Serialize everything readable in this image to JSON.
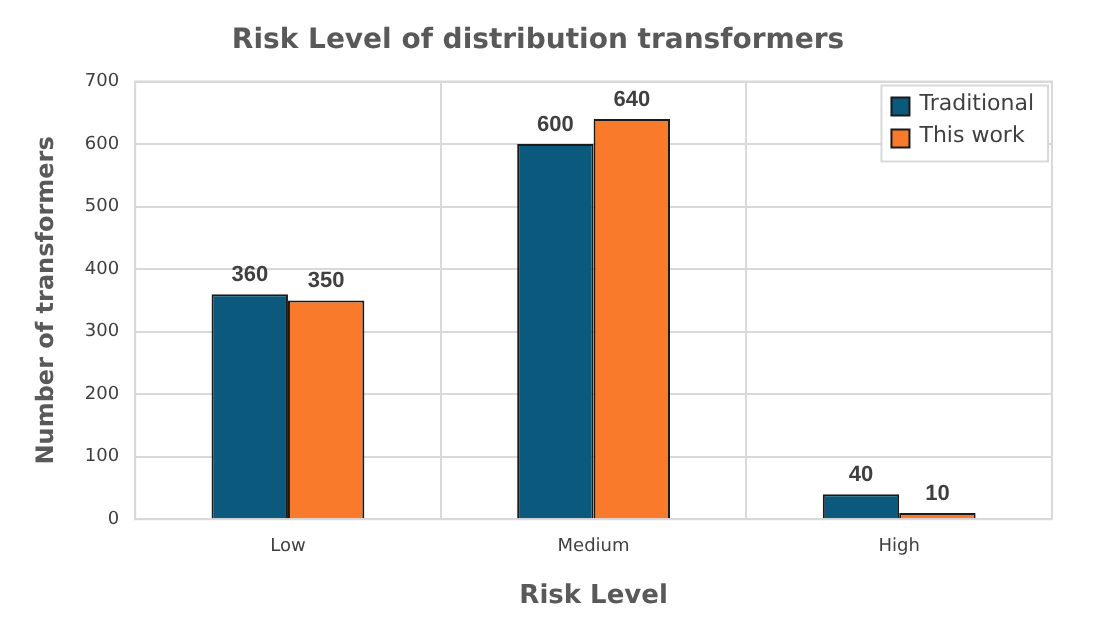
{
  "chart_data": {
    "type": "bar",
    "title": "Risk Level of distribution transformers",
    "xlabel": "Risk Level",
    "ylabel": "Number of transformers",
    "categories": [
      "Low",
      "Medium",
      "High"
    ],
    "series": [
      {
        "name": "Traditional",
        "color": "#0b5a7e",
        "values": [
          360,
          600,
          40
        ]
      },
      {
        "name": "This work",
        "color": "#f97a2a",
        "values": [
          350,
          640,
          10
        ]
      }
    ],
    "ylim": [
      0,
      700
    ],
    "yticks": [
      0,
      100,
      200,
      300,
      400,
      500,
      600,
      700
    ],
    "grid": true,
    "legend": "top right",
    "data_labels": true
  }
}
